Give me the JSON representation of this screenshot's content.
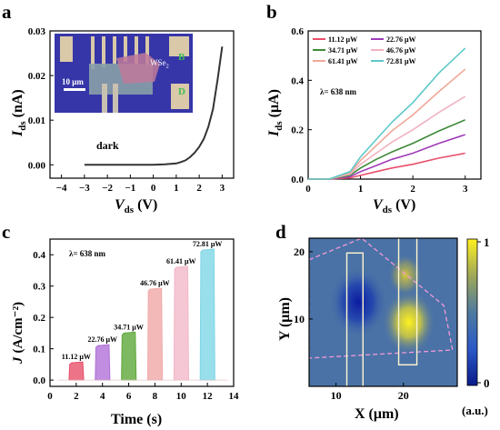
{
  "chart_data": [
    {
      "panel": "a",
      "type": "line",
      "xlabel_main": "V",
      "xlabel_sub": "ds",
      "xlabel_unit": "(V)",
      "ylabel_main": "I",
      "ylabel_sub": "ds",
      "ylabel_unit": "(nA)",
      "xlim": [
        -4.5,
        3.5
      ],
      "ylim": [
        -0.003,
        0.03
      ],
      "xticks": [
        -4,
        -3,
        -2,
        -1,
        0,
        1,
        2,
        3
      ],
      "xtick_labels": [
        "−4",
        "−3",
        "−2",
        "−1",
        "0",
        "1",
        "2",
        "3"
      ],
      "yticks": [
        0.0,
        0.01,
        0.02,
        0.03
      ],
      "ytick_labels": [
        "0.00",
        "0.01",
        "0.02",
        "0.03"
      ],
      "annotation": "dark",
      "inset": {
        "material_main": "WSe",
        "material_sub": "2",
        "scale_bar": "10 μm",
        "label_b": "B",
        "label_d": "D"
      },
      "series": [
        {
          "color": "#333333",
          "x": [
            -3,
            -2.5,
            -2,
            -1.5,
            -1,
            -0.5,
            0,
            0.5,
            1,
            1.2,
            1.4,
            1.6,
            1.8,
            2.0,
            2.2,
            2.4,
            2.6,
            2.8,
            3.0
          ],
          "y": [
            0,
            0,
            0,
            0,
            0,
            0,
            0,
            0.0001,
            0.0003,
            0.0006,
            0.001,
            0.0017,
            0.0027,
            0.004,
            0.0058,
            0.0085,
            0.0125,
            0.019,
            0.0265
          ]
        }
      ]
    },
    {
      "panel": "b",
      "type": "line",
      "xlabel_main": "V",
      "xlabel_sub": "ds",
      "xlabel_unit": "(V)",
      "ylabel_main": "I",
      "ylabel_sub": "ds",
      "ylabel_unit": "(μA)",
      "xlim": [
        0,
        3.3
      ],
      "ylim": [
        0,
        0.6
      ],
      "xticks": [
        0,
        1,
        2,
        3
      ],
      "xtick_labels": [
        "0",
        "1",
        "2",
        "3"
      ],
      "yticks": [
        0.0,
        0.2,
        0.4,
        0.6
      ],
      "ytick_labels": [
        "0.0",
        "0.2",
        "0.4",
        "0.6"
      ],
      "annotation": "λ= 638 nm",
      "legend": "top-left",
      "series": [
        {
          "name": "11.12 μW",
          "color": "#e8506a",
          "x": [
            0,
            0.4,
            0.8,
            1.0,
            1.3,
            1.6,
            2.0,
            2.5,
            3.0
          ],
          "y": [
            0,
            0,
            0.005,
            0.015,
            0.03,
            0.045,
            0.06,
            0.085,
            0.105
          ]
        },
        {
          "name": "22.76 μW",
          "color": "#a03cb8",
          "x": [
            0,
            0.4,
            0.8,
            1.0,
            1.3,
            1.6,
            2.0,
            2.5,
            3.0
          ],
          "y": [
            0,
            0,
            0.01,
            0.03,
            0.055,
            0.08,
            0.105,
            0.145,
            0.18
          ]
        },
        {
          "name": "34.71 μW",
          "color": "#3f8a3a",
          "x": [
            0,
            0.4,
            0.8,
            1.0,
            1.3,
            1.6,
            2.0,
            2.5,
            3.0
          ],
          "y": [
            0,
            0,
            0.015,
            0.045,
            0.08,
            0.11,
            0.145,
            0.195,
            0.24
          ]
        },
        {
          "name": "46.76 μW",
          "color": "#f0b2c0",
          "x": [
            0,
            0.4,
            0.8,
            1.0,
            1.3,
            1.6,
            2.0,
            2.5,
            3.0
          ],
          "y": [
            0,
            0,
            0.02,
            0.06,
            0.105,
            0.15,
            0.2,
            0.27,
            0.335
          ]
        },
        {
          "name": "61.41 μW",
          "color": "#f0a898",
          "x": [
            0,
            0.4,
            0.8,
            1.0,
            1.3,
            1.6,
            2.0,
            2.5,
            3.0
          ],
          "y": [
            0,
            0,
            0.025,
            0.075,
            0.135,
            0.195,
            0.26,
            0.355,
            0.445
          ]
        },
        {
          "name": "72.81 μW",
          "color": "#5ec8c8",
          "x": [
            0,
            0.4,
            0.8,
            1.0,
            1.3,
            1.6,
            2.0,
            2.5,
            3.0
          ],
          "y": [
            0,
            0,
            0.03,
            0.09,
            0.16,
            0.23,
            0.31,
            0.43,
            0.53
          ]
        }
      ]
    },
    {
      "panel": "c",
      "type": "area",
      "xlabel": "Time (s)",
      "ylabel_main": "J",
      "ylabel_unit": "(A/cm⁻²)",
      "xlim": [
        0,
        14
      ],
      "ylim": [
        -0.02,
        0.45
      ],
      "xticks": [
        0,
        2,
        4,
        6,
        8,
        10,
        12,
        14
      ],
      "xtick_labels": [
        "0",
        "2",
        "4",
        "6",
        "8",
        "10",
        "12",
        "14"
      ],
      "yticks": [
        0.0,
        0.1,
        0.2,
        0.3,
        0.4
      ],
      "ytick_labels": [
        "0.0",
        "0.1",
        "0.2",
        "0.3",
        "0.4"
      ],
      "annotation": "λ= 638 nm",
      "pulses": [
        {
          "label": "11.12 μW",
          "t_on": 1.5,
          "t_off": 2.5,
          "value": 0.055,
          "color": "#e8506a"
        },
        {
          "label": "22.76 μW",
          "t_on": 3.5,
          "t_off": 4.5,
          "value": 0.11,
          "color": "#b070d8"
        },
        {
          "label": "34.71 μW",
          "t_on": 5.5,
          "t_off": 6.5,
          "value": 0.15,
          "color": "#5ca83a"
        },
        {
          "label": "46.76 μW",
          "t_on": 7.5,
          "t_off": 8.5,
          "value": 0.29,
          "color": "#f0a8a8"
        },
        {
          "label": "61.41 μW",
          "t_on": 9.5,
          "t_off": 10.5,
          "value": 0.36,
          "color": "#f2b8c8"
        },
        {
          "label": "72.81 μW",
          "t_on": 11.5,
          "t_off": 12.5,
          "value": 0.415,
          "color": "#7ed6e6"
        }
      ]
    },
    {
      "panel": "d",
      "type": "heatmap",
      "xlabel": "X (μm)",
      "ylabel": "Y (μm)",
      "xlim": [
        6,
        28
      ],
      "ylim": [
        0,
        22
      ],
      "xticks": [
        10,
        20
      ],
      "xtick_labels": [
        "10",
        "20"
      ],
      "yticks": [
        10,
        20
      ],
      "ytick_labels": [
        "10",
        "20"
      ],
      "colorbar": {
        "min_label": "0",
        "max_label": "1",
        "unit": "(a.u.)"
      },
      "spots": [
        {
          "x": 13.3,
          "y": 12.5,
          "value": 0.0,
          "sigma": 2.2
        },
        {
          "x": 20.8,
          "y": 9.5,
          "value": 1.0,
          "sigma": 2.0
        },
        {
          "x": 20.3,
          "y": 16.5,
          "value": 0.72,
          "sigma": 1.3
        }
      ],
      "electrodes": [
        {
          "x0": 11.6,
          "x1": 14.0,
          "y0": -1,
          "y1": 19.8
        },
        {
          "x0": 19.3,
          "x1": 22.0,
          "y0": 3.2,
          "y1": 22.5
        }
      ],
      "flake_outline": [
        [
          6,
          18.8
        ],
        [
          13.8,
          22
        ],
        [
          26,
          12
        ],
        [
          27.3,
          5.4
        ],
        [
          6,
          4.2
        ]
      ]
    }
  ],
  "panel_labels": [
    "a",
    "b",
    "c",
    "d"
  ]
}
